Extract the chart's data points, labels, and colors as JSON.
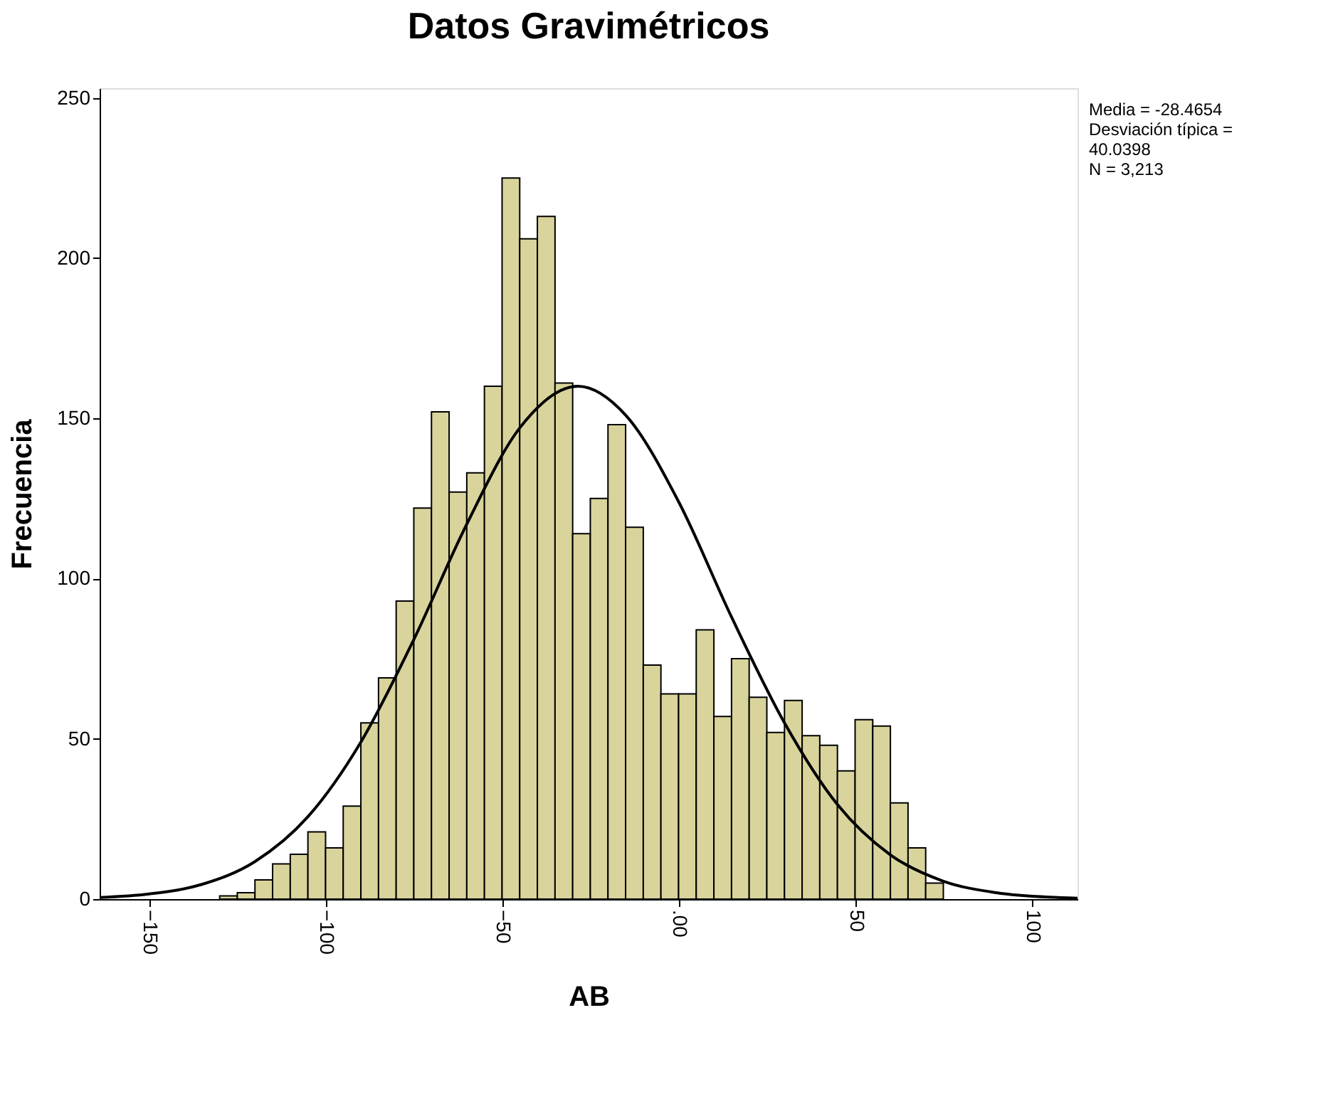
{
  "chart_data": {
    "type": "histogram",
    "title": "Datos Gravimétricos",
    "xlabel": "AB",
    "ylabel": "Frecuencia",
    "bins": [
      -130,
      -125,
      -120,
      -115,
      -110,
      -105,
      -100,
      -95,
      -90,
      -85,
      -80,
      -75,
      -70,
      -65,
      -60,
      -55,
      -50,
      -45,
      -40,
      -35,
      -30,
      -25,
      -20,
      -15,
      -10,
      -5,
      0,
      5,
      10,
      15,
      20,
      25,
      30,
      35,
      40,
      45,
      50,
      55,
      60,
      65,
      70,
      75
    ],
    "values": [
      1,
      2,
      6,
      11,
      14,
      21,
      16,
      29,
      55,
      69,
      93,
      122,
      152,
      127,
      133,
      160,
      225,
      206,
      213,
      161,
      114,
      125,
      148,
      116,
      73,
      64,
      64,
      84,
      57,
      75,
      63,
      52,
      62,
      51,
      48,
      40,
      56,
      54,
      30,
      16,
      5
    ],
    "color": "#d9d49c",
    "series": [
      {
        "type": "line",
        "color": "#000000",
        "x": [
          -164,
          -150,
          -135,
          -120,
          -105,
          -90,
          -75,
          -60,
          -45,
          -28.5,
          -15,
          0,
          15,
          30,
          45,
          60,
          75,
          90,
          105,
          113
        ],
        "values": [
          0.5,
          1.6,
          4.6,
          11.7,
          25.7,
          49,
          81,
          117,
          147,
          160,
          151,
          124,
          88,
          55,
          29.5,
          13.8,
          5.6,
          2,
          0.6,
          0.3
        ]
      }
    ],
    "xlim": [
      -164,
      113
    ],
    "ylim": [
      0,
      253
    ],
    "xticks": [
      -150,
      -100,
      -50,
      {
        "value": 0,
        "label": ".00"
      },
      50,
      100
    ],
    "yticks": [
      0,
      50,
      100,
      150,
      200,
      250
    ],
    "grid": false,
    "annotations": [
      "Media = -28.4654",
      "Desviación típica =",
      "40.0398",
      "N = 3,213"
    ]
  }
}
